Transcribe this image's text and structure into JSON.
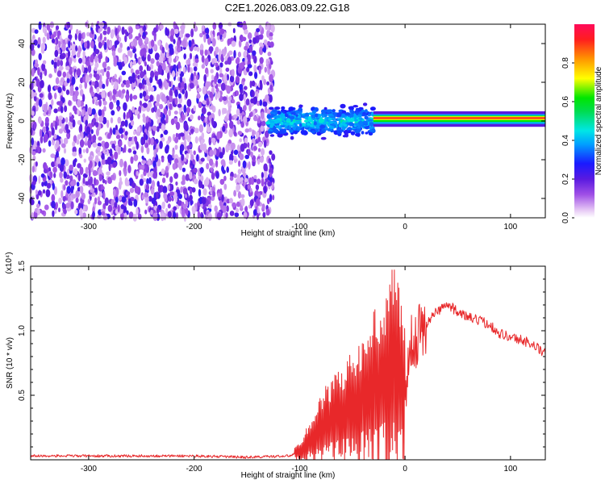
{
  "figure_title": "C2E1.2026.083.09.22.G18",
  "chart_data": [
    {
      "type": "heatmap",
      "title": "C2E1.2026.083.09.22.G18",
      "xlabel": "Height of straight line (km)",
      "ylabel": "Frequency (Hz)",
      "xlim": [
        -355,
        133
      ],
      "ylim": [
        -50,
        50
      ],
      "xticks": [
        -300,
        -200,
        -100,
        0,
        100
      ],
      "xtick_labels": [
        "-300",
        "-200",
        "-100",
        "0",
        "100"
      ],
      "yticks": [
        -40,
        -20,
        0,
        20,
        40
      ],
      "ytick_labels": [
        "-40",
        "-20",
        "0",
        "20",
        "40"
      ],
      "colorbar": {
        "label": "Normalized spectral amplitude",
        "range": [
          0,
          1
        ],
        "ticks": [
          0.0,
          0.2,
          0.4,
          0.6,
          0.8
        ],
        "tick_labels": [
          "0.0",
          "0.2",
          "0.4",
          "0.6",
          "0.8"
        ],
        "colormap": "rainbow (white-violet-blue-cyan-green-yellow-orange-red)"
      },
      "regions": [
        {
          "x_range": [
            -355,
            -125
          ],
          "freq_range": [
            -50,
            50
          ],
          "amplitude": [
            0.05,
            0.25
          ],
          "description": "broadband noise"
        },
        {
          "x_range": [
            -130,
            -30
          ],
          "freq_range": [
            -10,
            10
          ],
          "amplitude": [
            0.2,
            0.5
          ],
          "description": "spreading signal band"
        },
        {
          "x_range": [
            -30,
            133
          ],
          "freq_range": [
            -1.5,
            3.5
          ],
          "amplitude": [
            0.8,
            1.0
          ],
          "description": "narrow carrier near 2 Hz"
        }
      ]
    },
    {
      "type": "line",
      "xlabel": "Height of straight line (km)",
      "ylabel": "SNR (10 * v/v)",
      "y_multiplier": "(x10⁴)",
      "xlim": [
        -355,
        133
      ],
      "ylim": [
        0,
        1.5
      ],
      "xticks": [
        -300,
        -200,
        -100,
        0,
        100
      ],
      "xtick_labels": [
        "-300",
        "-200",
        "-100",
        "0",
        "100"
      ],
      "yticks": [
        0.5,
        1.0,
        1.5
      ],
      "ytick_labels": [
        "0.5",
        "1.0",
        "1.5"
      ],
      "series": [
        {
          "name": "SNR",
          "color": "#e8282a",
          "x": [
            -355,
            -300,
            -250,
            -200,
            -150,
            -110,
            -100,
            -90,
            -80,
            -70,
            -60,
            -50,
            -40,
            -30,
            -20,
            -15,
            -10,
            -5,
            0,
            5,
            10,
            15,
            20,
            25,
            30,
            35,
            40,
            50,
            60,
            70,
            80,
            90,
            100,
            110,
            120,
            133
          ],
          "y": [
            0.03,
            0.03,
            0.03,
            0.03,
            0.02,
            0.03,
            0.06,
            0.15,
            0.25,
            0.3,
            0.35,
            0.4,
            0.45,
            0.55,
            0.6,
            0.75,
            0.7,
            0.65,
            0.6,
            0.85,
            0.95,
            1.0,
            1.05,
            1.1,
            1.15,
            1.18,
            1.2,
            1.15,
            1.1,
            1.08,
            1.05,
            0.98,
            0.95,
            0.93,
            0.9,
            0.82
          ]
        }
      ]
    }
  ]
}
